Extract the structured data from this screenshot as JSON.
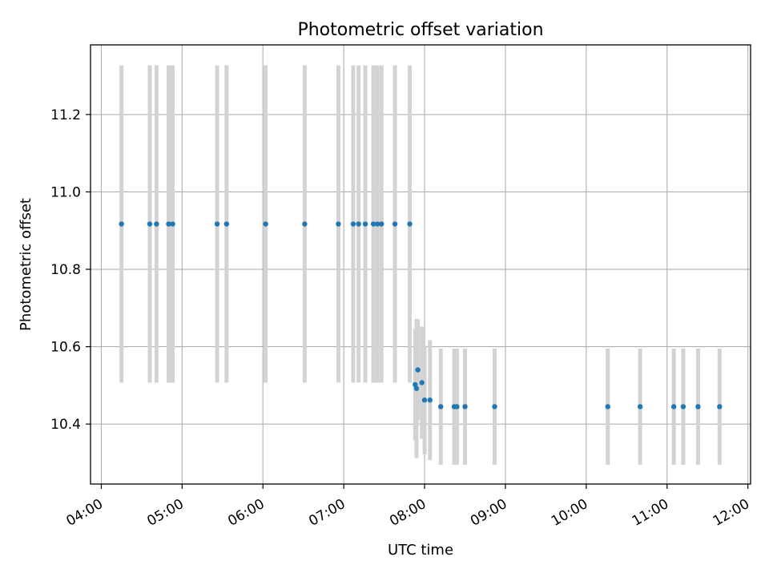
{
  "chart_data": {
    "type": "scatter",
    "title": "Photometric offset variation",
    "xlabel": "UTC time",
    "ylabel": "Photometric offset",
    "x_unit": "UTC time",
    "xlim": [
      "03:52",
      "12:02"
    ],
    "ylim": [
      10.245,
      11.38
    ],
    "x_ticks": [
      "04:00",
      "05:00",
      "06:00",
      "07:00",
      "08:00",
      "09:00",
      "10:00",
      "11:00",
      "12:00"
    ],
    "y_ticks": [
      10.4,
      10.6,
      10.8,
      11.0,
      11.2
    ],
    "y_tick_labels": [
      "10.4",
      "10.6",
      "10.8",
      "11.0",
      "11.2"
    ],
    "grid": true,
    "legend": "none",
    "marker_color": "#1f77b4",
    "errorbar_color": "#d3d3d3",
    "points": [
      {
        "x": "04:15",
        "y": 10.917,
        "yerr": 0.41
      },
      {
        "x": "04:36",
        "y": 10.917,
        "yerr": 0.41
      },
      {
        "x": "04:41",
        "y": 10.917,
        "yerr": 0.41
      },
      {
        "x": "04:50",
        "y": 10.917,
        "yerr": 0.41
      },
      {
        "x": "04:53",
        "y": 10.917,
        "yerr": 0.41
      },
      {
        "x": "05:26",
        "y": 10.917,
        "yerr": 0.41
      },
      {
        "x": "05:33",
        "y": 10.917,
        "yerr": 0.41
      },
      {
        "x": "06:02",
        "y": 10.917,
        "yerr": 0.41
      },
      {
        "x": "06:31",
        "y": 10.917,
        "yerr": 0.41
      },
      {
        "x": "06:56",
        "y": 10.917,
        "yerr": 0.41
      },
      {
        "x": "07:07",
        "y": 10.917,
        "yerr": 0.41
      },
      {
        "x": "07:11",
        "y": 10.917,
        "yerr": 0.41
      },
      {
        "x": "07:16",
        "y": 10.917,
        "yerr": 0.41
      },
      {
        "x": "07:22",
        "y": 10.917,
        "yerr": 0.41
      },
      {
        "x": "07:25",
        "y": 10.917,
        "yerr": 0.41
      },
      {
        "x": "07:28",
        "y": 10.917,
        "yerr": 0.41
      },
      {
        "x": "07:38",
        "y": 10.917,
        "yerr": 0.41
      },
      {
        "x": "07:49",
        "y": 10.917,
        "yerr": 0.41
      },
      {
        "x": "07:53",
        "y": 10.502,
        "yerr": 0.145
      },
      {
        "x": "07:54",
        "y": 10.492,
        "yerr": 0.18
      },
      {
        "x": "07:55",
        "y": 10.54,
        "yerr": 0.13
      },
      {
        "x": "07:58",
        "y": 10.507,
        "yerr": 0.145
      },
      {
        "x": "08:00",
        "y": 10.462,
        "yerr": 0.14
      },
      {
        "x": "08:04",
        "y": 10.462,
        "yerr": 0.155
      },
      {
        "x": "08:12",
        "y": 10.445,
        "yerr": 0.15
      },
      {
        "x": "08:22",
        "y": 10.445,
        "yerr": 0.15
      },
      {
        "x": "08:24",
        "y": 10.445,
        "yerr": 0.15
      },
      {
        "x": "08:30",
        "y": 10.445,
        "yerr": 0.15
      },
      {
        "x": "08:52",
        "y": 10.445,
        "yerr": 0.15
      },
      {
        "x": "10:16",
        "y": 10.445,
        "yerr": 0.15
      },
      {
        "x": "10:40",
        "y": 10.445,
        "yerr": 0.15
      },
      {
        "x": "11:05",
        "y": 10.445,
        "yerr": 0.15
      },
      {
        "x": "11:12",
        "y": 10.445,
        "yerr": 0.15
      },
      {
        "x": "11:23",
        "y": 10.445,
        "yerr": 0.15
      },
      {
        "x": "11:39",
        "y": 10.445,
        "yerr": 0.15
      }
    ]
  }
}
